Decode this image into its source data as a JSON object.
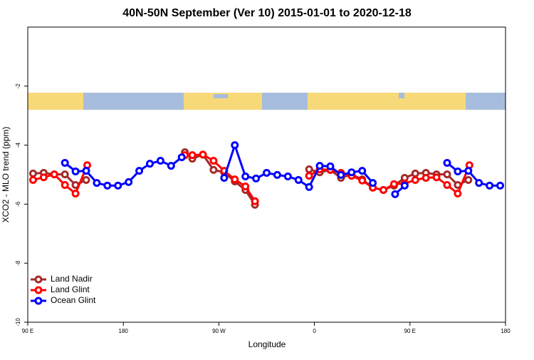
{
  "chart_data": {
    "type": "line",
    "title": "40N-50N September (Ver 10)   2015-01-01 to 2020-12-18",
    "xlabel": "Longitude",
    "ylabel": "XCO2 - MLO trend (ppm)",
    "xlim": [
      90,
      540
    ],
    "ylim": [
      -10,
      0
    ],
    "xticks": [
      {
        "value": 90,
        "label": "90 E"
      },
      180,
      {
        "value": 270,
        "label": "90 W"
      },
      {
        "value": 360,
        "label": "0"
      },
      {
        "value": 450,
        "label": "90 E"
      },
      {
        "value": 540,
        "label": "180"
      }
    ],
    "yticks": [
      -10,
      -8,
      -6,
      -4,
      -2
    ],
    "legend": "bottom-left",
    "series": [
      {
        "name": "Land Nadir",
        "color": "#a52a2a",
        "x": [
          95,
          105,
          115,
          125,
          135,
          145,
          null,
          238,
          245,
          255,
          265,
          275,
          285,
          295,
          304,
          null,
          355,
          365,
          375,
          385,
          395,
          405,
          415,
          425,
          435,
          445,
          455,
          465,
          475,
          485,
          495,
          505
        ],
        "values": [
          -4.96,
          -4.94,
          -4.99,
          -4.99,
          -5.35,
          -5.18,
          null,
          -4.24,
          -4.46,
          -4.32,
          -4.84,
          -4.92,
          -5.23,
          -5.52,
          -6.02,
          null,
          -4.82,
          -4.92,
          -4.84,
          -5.11,
          -4.99,
          -5.16,
          -5.44,
          -5.52,
          -5.37,
          -5.11,
          -4.96,
          -4.94,
          -4.99,
          -4.99,
          -5.35,
          -5.18
        ]
      },
      {
        "name": "Land Glint",
        "color": "#ff0000",
        "x": [
          95,
          105,
          115,
          125,
          135,
          146,
          null,
          238,
          245,
          255,
          265,
          275,
          285,
          295,
          304,
          null,
          355,
          365,
          375,
          385,
          395,
          405,
          415,
          425,
          435,
          445,
          455,
          465,
          475,
          485,
          495,
          506
        ],
        "values": [
          -5.18,
          -5.09,
          -4.99,
          -5.35,
          -5.64,
          -4.68,
          null,
          -4.34,
          -4.34,
          -4.32,
          -4.53,
          -4.87,
          -5.16,
          -5.4,
          -5.9,
          null,
          -5.04,
          -4.82,
          -4.84,
          -4.94,
          -5.04,
          -5.2,
          -5.44,
          -5.52,
          -5.32,
          -5.3,
          -5.18,
          -5.11,
          -5.09,
          -5.35,
          -5.64,
          -4.68
        ]
      },
      {
        "name": "Ocean Glint",
        "color": "#0000ff",
        "x": [
          125,
          135,
          145,
          155,
          165,
          175,
          185,
          195,
          205,
          215,
          225,
          235,
          null,
          275,
          285,
          295,
          305,
          315,
          325,
          335,
          345,
          355,
          365,
          375,
          385,
          395,
          405,
          415,
          null,
          436,
          445,
          null,
          485,
          495,
          505,
          515,
          525,
          535
        ],
        "values": [
          -4.6,
          -4.89,
          -4.87,
          -5.28,
          -5.37,
          -5.37,
          -5.25,
          -4.87,
          -4.63,
          -4.53,
          -4.7,
          -4.41,
          null,
          -5.11,
          -4.0,
          -5.06,
          -5.13,
          -4.94,
          -5.01,
          -5.06,
          -5.18,
          -5.42,
          -4.7,
          -4.72,
          -5.01,
          -4.92,
          -4.87,
          -5.28,
          null,
          -5.66,
          -5.37,
          null,
          -4.6,
          -4.89,
          -4.87,
          -5.28,
          -5.37,
          -5.37
        ]
      }
    ]
  }
}
